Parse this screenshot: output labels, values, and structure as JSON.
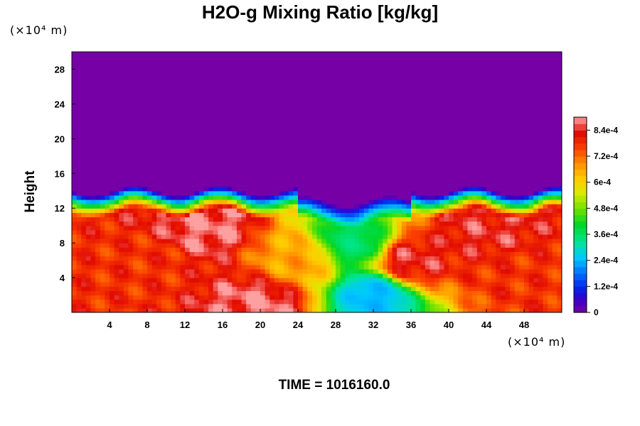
{
  "chart_data": {
    "type": "heatmap",
    "title": "H2O-g Mixing Ratio [kg/kg]",
    "x_unit_label": "(×10⁴ m)",
    "y_unit_label": "(×10⁴ m)",
    "ylabel": "Height",
    "footer": "TIME = 1016160.0",
    "xlim": [
      0,
      52
    ],
    "ylim": [
      0,
      30
    ],
    "xticks": [
      "4",
      "8",
      "12",
      "16",
      "20",
      "24",
      "28",
      "32",
      "36",
      "40",
      "44",
      "48"
    ],
    "yticks": [
      "4",
      "8",
      "12",
      "16",
      "20",
      "24",
      "28"
    ],
    "color_scale": {
      "min": 0,
      "max": 0.0009,
      "labels": [
        "0",
        "1.2e-4",
        "2.4e-4",
        "3.6e-4",
        "4.8e-4",
        "6e-4",
        "7.2e-4",
        "8.4e-4"
      ]
    },
    "field_summary": {
      "upper_region_value": 0,
      "moist_layer_top_height": 14,
      "description_values": [
        {
          "x": 8,
          "y": 6,
          "value": 0.00078
        },
        {
          "x": 14,
          "y": 10,
          "value": 0.00088
        },
        {
          "x": 20,
          "y": 1,
          "value": 0.00088
        },
        {
          "x": 24,
          "y": 6,
          "value": 0.00066
        },
        {
          "x": 30,
          "y": 8,
          "value": 0.00036
        },
        {
          "x": 32,
          "y": 2,
          "value": 0.00024
        },
        {
          "x": 36,
          "y": 6,
          "value": 0.00084
        },
        {
          "x": 44,
          "y": 10,
          "value": 0.00084
        },
        {
          "x": 48,
          "y": 4,
          "value": 0.00078
        }
      ]
    }
  }
}
